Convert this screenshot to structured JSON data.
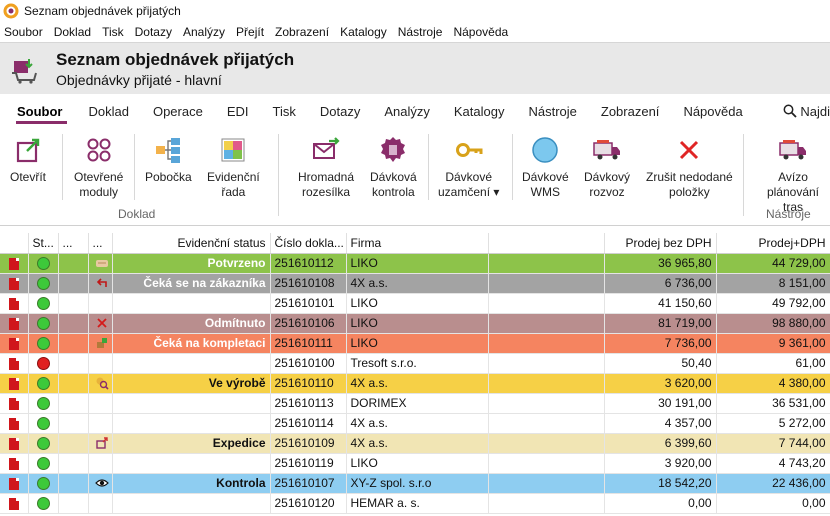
{
  "window": {
    "title": "Seznam objednávek přijatých"
  },
  "menubar": [
    "Soubor",
    "Doklad",
    "Tisk",
    "Dotazy",
    "Analýzy",
    "Přejít",
    "Zobrazení",
    "Katalogy",
    "Nástroje",
    "Nápověda"
  ],
  "header": {
    "title": "Seznam objednávek přijatých",
    "subtitle": "Objednávky přijaté - hlavní"
  },
  "ribbon": {
    "tabs": [
      "Soubor",
      "Doklad",
      "Operace",
      "EDI",
      "Tisk",
      "Dotazy",
      "Analýzy",
      "Katalogy",
      "Nástroje",
      "Zobrazení",
      "Nápověda"
    ],
    "active_tab": "Soubor",
    "search_label": "Najdi",
    "buttons": [
      {
        "label": "Otevřít",
        "icon": "open-icon"
      },
      {
        "label": "Otevřené\nmoduly",
        "icon": "modules-icon"
      },
      {
        "label": "Pobočka",
        "icon": "branch-icon"
      },
      {
        "label": "Evidenční\nřada",
        "icon": "series-icon"
      },
      {
        "label": "Hromadná\nrozesílka",
        "icon": "mail-icon"
      },
      {
        "label": "Dávková\nkontrola",
        "icon": "batch-check-icon"
      },
      {
        "label": "Dávkové\nuzamčení ▾",
        "icon": "key-icon"
      },
      {
        "label": "Dávkové\nWMS",
        "icon": "wms-icon"
      },
      {
        "label": "Dávkový\nrozvoz",
        "icon": "truck-icon"
      },
      {
        "label": "Zrušit nedodané\npoložky",
        "icon": "cancel-icon"
      },
      {
        "label": "Avízo\nplánování tras",
        "icon": "route-truck-icon"
      }
    ],
    "groups": {
      "doklad": "Doklad",
      "nastroje": "Nástroje"
    }
  },
  "grid": {
    "columns": [
      "",
      "St...",
      "...",
      "...",
      "Evidenční status",
      "Číslo dokla...",
      "Firma",
      "",
      "Prodej bez DPH",
      "Prodej+DPH"
    ],
    "colors": {
      "green": "#8dc34a",
      "gray": "#a3a3a3",
      "rose": "#b98e8e",
      "orange": "#f58460",
      "yellow": "#f6d046",
      "cream": "#f1e5b4",
      "blue": "#8ecdf1",
      "white": "#ffffff"
    },
    "rows": [
      {
        "dot": "green",
        "icon": "handshake-icon",
        "status": "Potvrzeno",
        "doc": "251610112",
        "firm": "LIKO",
        "net": "36 965,80",
        "gross": "44 729,00",
        "color": "green",
        "status_white": true
      },
      {
        "dot": "green",
        "icon": "return-arrow-icon",
        "status": "Čeká se na zákazníka",
        "doc": "251610108",
        "firm": "4X a.s.",
        "net": "6 736,00",
        "gross": "8 151,00",
        "color": "gray",
        "status_white": true
      },
      {
        "dot": "green",
        "icon": "",
        "status": "",
        "doc": "251610101",
        "firm": "LIKO",
        "net": "41 150,60",
        "gross": "49 792,00",
        "color": "white",
        "status_white": false
      },
      {
        "dot": "green",
        "icon": "x-icon",
        "status": "Odmítnuto",
        "doc": "251610106",
        "firm": "LIKO",
        "net": "81 719,00",
        "gross": "98 880,00",
        "color": "rose",
        "status_white": true
      },
      {
        "dot": "green",
        "icon": "box-icon",
        "status": "Čeká na kompletaci",
        "doc": "251610111",
        "firm": "LIKO",
        "net": "7 736,00",
        "gross": "9 361,00",
        "color": "orange",
        "status_white": true
      },
      {
        "dot": "red",
        "icon": "",
        "status": "",
        "doc": "251610100",
        "firm": "Tresoft s.r.o.",
        "net": "50,40",
        "gross": "61,00",
        "color": "white",
        "status_white": false
      },
      {
        "dot": "green",
        "icon": "gear-search-icon",
        "status": "Ve výrobě",
        "doc": "251610110",
        "firm": "4X a.s.",
        "net": "3 620,00",
        "gross": "4 380,00",
        "color": "yellow",
        "status_white": false
      },
      {
        "dot": "green",
        "icon": "",
        "status": "",
        "doc": "251610113",
        "firm": "DORIMEX",
        "net": "30 191,00",
        "gross": "36 531,00",
        "color": "white",
        "status_white": false
      },
      {
        "dot": "green",
        "icon": "",
        "status": "",
        "doc": "251610114",
        "firm": "4X a.s.",
        "net": "4 357,00",
        "gross": "5 272,00",
        "color": "white",
        "status_white": false
      },
      {
        "dot": "green",
        "icon": "package-out-icon",
        "status": "Expedice",
        "doc": "251610109",
        "firm": "4X a.s.",
        "net": "6 399,60",
        "gross": "7 744,00",
        "color": "cream",
        "status_white": false
      },
      {
        "dot": "green",
        "icon": "",
        "status": "",
        "doc": "251610119",
        "firm": "LIKO",
        "net": "3 920,00",
        "gross": "4 743,20",
        "color": "white",
        "status_white": false
      },
      {
        "dot": "green",
        "icon": "eye-icon",
        "status": "Kontrola",
        "doc": "251610107",
        "firm": "XY-Z spol. s.r.o",
        "net": "18 542,20",
        "gross": "22 436,00",
        "color": "blue",
        "status_white": false
      },
      {
        "dot": "green",
        "icon": "",
        "status": "",
        "doc": "251610120",
        "firm": "HEMAR a. s.",
        "net": "0,00",
        "gross": "0,00",
        "color": "white",
        "status_white": false
      }
    ]
  }
}
